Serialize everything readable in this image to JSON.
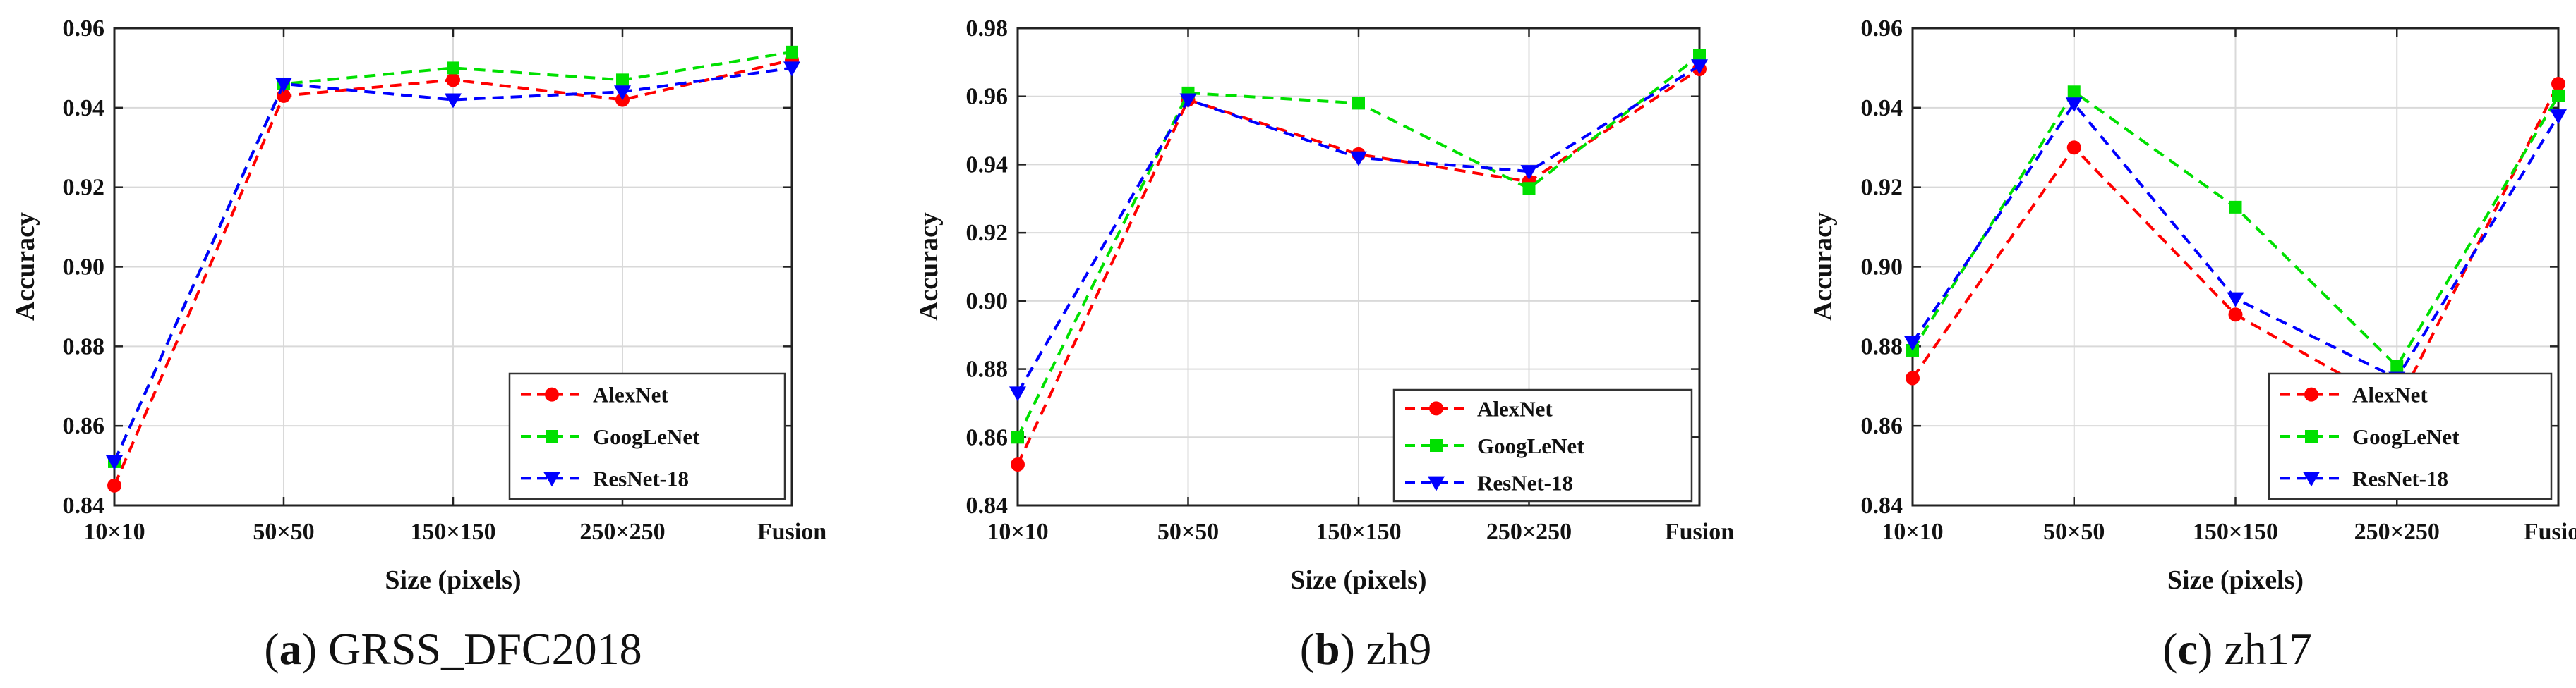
{
  "chart_data": [
    {
      "type": "line",
      "caption_letter": "a",
      "caption_text": " GRSS_DFC2018",
      "categories": [
        "10×10",
        "50×50",
        "150×150",
        "250×250",
        "Fusion"
      ],
      "xlabel": "Size (pixels)",
      "ylabel": "Accuracy",
      "ylim": [
        0.84,
        0.96
      ],
      "yticks": [
        "0.84",
        "0.86",
        "0.88",
        "0.90",
        "0.92",
        "0.94",
        "0.96"
      ],
      "grid": true,
      "legend_position": "bottom-right",
      "series": [
        {
          "name": "AlexNet",
          "color": "#ff0000",
          "marker": "circle",
          "values": [
            0.845,
            0.943,
            0.947,
            0.942,
            0.952
          ]
        },
        {
          "name": "GoogLeNet",
          "color": "#00e000",
          "marker": "square",
          "values": [
            0.851,
            0.946,
            0.95,
            0.947,
            0.954
          ]
        },
        {
          "name": "ResNet-18",
          "color": "#0000ff",
          "marker": "triangle-down",
          "values": [
            0.851,
            0.946,
            0.942,
            0.944,
            0.95
          ]
        }
      ]
    },
    {
      "type": "line",
      "caption_letter": "b",
      "caption_text": " zh9",
      "categories": [
        "10×10",
        "50×50",
        "150×150",
        "250×250",
        "Fusion"
      ],
      "xlabel": "Size (pixels)",
      "ylabel": "Accuracy",
      "ylim": [
        0.84,
        0.98
      ],
      "yticks": [
        "0.84",
        "0.86",
        "0.88",
        "0.90",
        "0.92",
        "0.94",
        "0.96",
        "0.98"
      ],
      "grid": true,
      "legend_position": "bottom-right",
      "series": [
        {
          "name": "AlexNet",
          "color": "#ff0000",
          "marker": "circle",
          "values": [
            0.852,
            0.959,
            0.943,
            0.935,
            0.968
          ]
        },
        {
          "name": "GoogLeNet",
          "color": "#00e000",
          "marker": "square",
          "values": [
            0.86,
            0.961,
            0.958,
            0.933,
            0.972
          ]
        },
        {
          "name": "ResNet-18",
          "color": "#0000ff",
          "marker": "triangle-down",
          "values": [
            0.873,
            0.959,
            0.942,
            0.938,
            0.969
          ]
        }
      ]
    },
    {
      "type": "line",
      "caption_letter": "c",
      "caption_text": " zh17",
      "categories": [
        "10×10",
        "50×50",
        "150×150",
        "250×250",
        "Fusion"
      ],
      "xlabel": "Size (pixels)",
      "ylabel": "Accuracy",
      "ylim": [
        0.84,
        0.96
      ],
      "yticks": [
        "0.84",
        "0.86",
        "0.88",
        "0.90",
        "0.92",
        "0.94",
        "0.96"
      ],
      "grid": true,
      "legend_position": "bottom-right",
      "series": [
        {
          "name": "AlexNet",
          "color": "#ff0000",
          "marker": "circle",
          "values": [
            0.872,
            0.93,
            0.888,
            0.865,
            0.946
          ]
        },
        {
          "name": "GoogLeNet",
          "color": "#00e000",
          "marker": "square",
          "values": [
            0.879,
            0.944,
            0.915,
            0.875,
            0.943
          ]
        },
        {
          "name": "ResNet-18",
          "color": "#0000ff",
          "marker": "triangle-down",
          "values": [
            0.881,
            0.941,
            0.892,
            0.872,
            0.938
          ]
        }
      ]
    }
  ]
}
